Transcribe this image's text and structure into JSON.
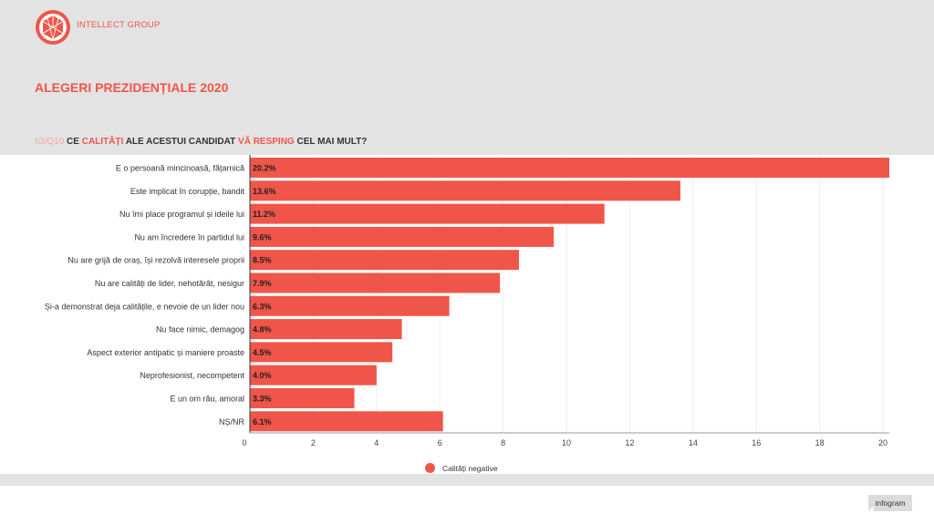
{
  "header": {
    "brand": "INTELLECT GROUP",
    "title": "ALEGERI PREZIDENȚIALE 2020",
    "question": {
      "code": "IG/Q10",
      "parts": [
        "CE",
        "CALITĂȚI",
        "ALE ACESTUI CANDIDAT",
        "VĂ RESPING",
        "CEL MAI MULT?"
      ]
    }
  },
  "colors": {
    "accent": "#f0554a",
    "band": "#e3e3e3",
    "text": "#333333"
  },
  "chart_data": {
    "type": "bar",
    "orientation": "horizontal",
    "categories": [
      "E o persoană mincinoasă, fățarnică",
      "Este implicat în corupție, bandit",
      "Nu îmi place programul și ideile lui",
      "Nu am încredere în partidul lui",
      "Nu are grijă de oraș, își rezolvă interesele proprii",
      "Nu are calități de lider, nehotărât, nesigur",
      "Și-a demonstrat deja calitățile, e nevoie de un lider nou",
      "Nu face nimic, demagog",
      "Aspect exterior antipatic și maniere proaste",
      "Neprofesionist, necompetent",
      "E un om rău, amoral",
      "NȘ/NR"
    ],
    "series": [
      {
        "name": "Calități negative",
        "values": [
          20.2,
          13.6,
          11.2,
          9.6,
          8.5,
          7.9,
          6.3,
          4.8,
          4.5,
          4.0,
          3.3,
          6.1
        ],
        "labels": [
          "20.2%",
          "13.6%",
          "11.2%",
          "9.6%",
          "8.5%",
          "7.9%",
          "6.3%",
          "4.8%",
          "4.5%",
          "4.0%",
          "3.3%",
          "6.1%"
        ],
        "color": "#f0554a"
      }
    ],
    "xlim": [
      0,
      20.2
    ],
    "xticks": [
      0,
      2,
      4,
      6,
      8,
      10,
      12,
      14,
      16,
      18,
      20
    ],
    "grid": true,
    "legend": "bottom-center"
  },
  "footer": {
    "legend_label": "Calități negative",
    "badge": "infogram"
  }
}
